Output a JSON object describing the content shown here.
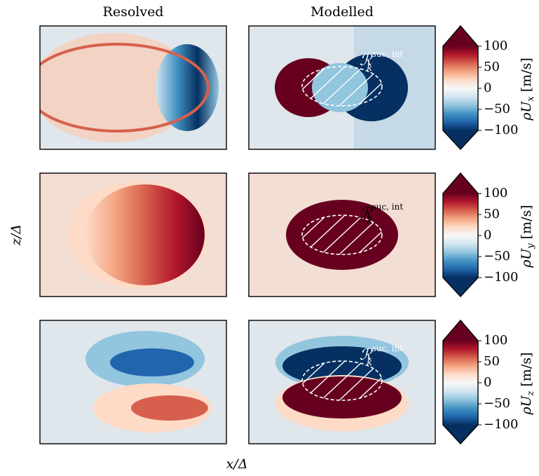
{
  "figure": {
    "column_titles": [
      "Resolved",
      "Modelled"
    ],
    "xlabel": "x/Δ",
    "ylabel": "z/Δ",
    "colormap": [
      "#053061",
      "#2166ac",
      "#4393c3",
      "#92c5de",
      "#d1e5f0",
      "#f7f7f7",
      "#fddbc7",
      "#f4a582",
      "#d6604d",
      "#b2182b",
      "#67001f"
    ],
    "rows": [
      {
        "colorbar_label": {
          "symbol": "ρU",
          "sub": "x",
          "unit": "[m/s]"
        },
        "clim": [
          -100,
          100
        ],
        "cticks": [
          {
            "value": -100,
            "label": "−100"
          },
          {
            "value": -50,
            "label": "−50"
          },
          0,
          50,
          100
        ],
        "region_label": {
          "symbol": "ℛ",
          "sub": "k",
          "sup": "suc, int"
        }
      },
      {
        "colorbar_label": {
          "symbol": "ρU",
          "sub": "y",
          "unit": "[m/s]"
        },
        "clim": [
          -100,
          100
        ],
        "cticks": [
          {
            "value": -100,
            "label": "−100"
          },
          {
            "value": -50,
            "label": "−50"
          },
          0,
          50,
          100
        ],
        "region_label": {
          "symbol": "ℛ",
          "sub": "k",
          "sup": "suc, int"
        }
      },
      {
        "colorbar_label": {
          "symbol": "ρU",
          "sub": "z",
          "unit": "[m/s]"
        },
        "clim": [
          -100,
          100
        ],
        "cticks": [
          {
            "value": -100,
            "label": "−100"
          },
          {
            "value": -50,
            "label": "−50"
          },
          0,
          50,
          100
        ],
        "region_label": {
          "symbol": "ℛ",
          "sub": "k",
          "sup": "suc, int"
        }
      }
    ]
  }
}
